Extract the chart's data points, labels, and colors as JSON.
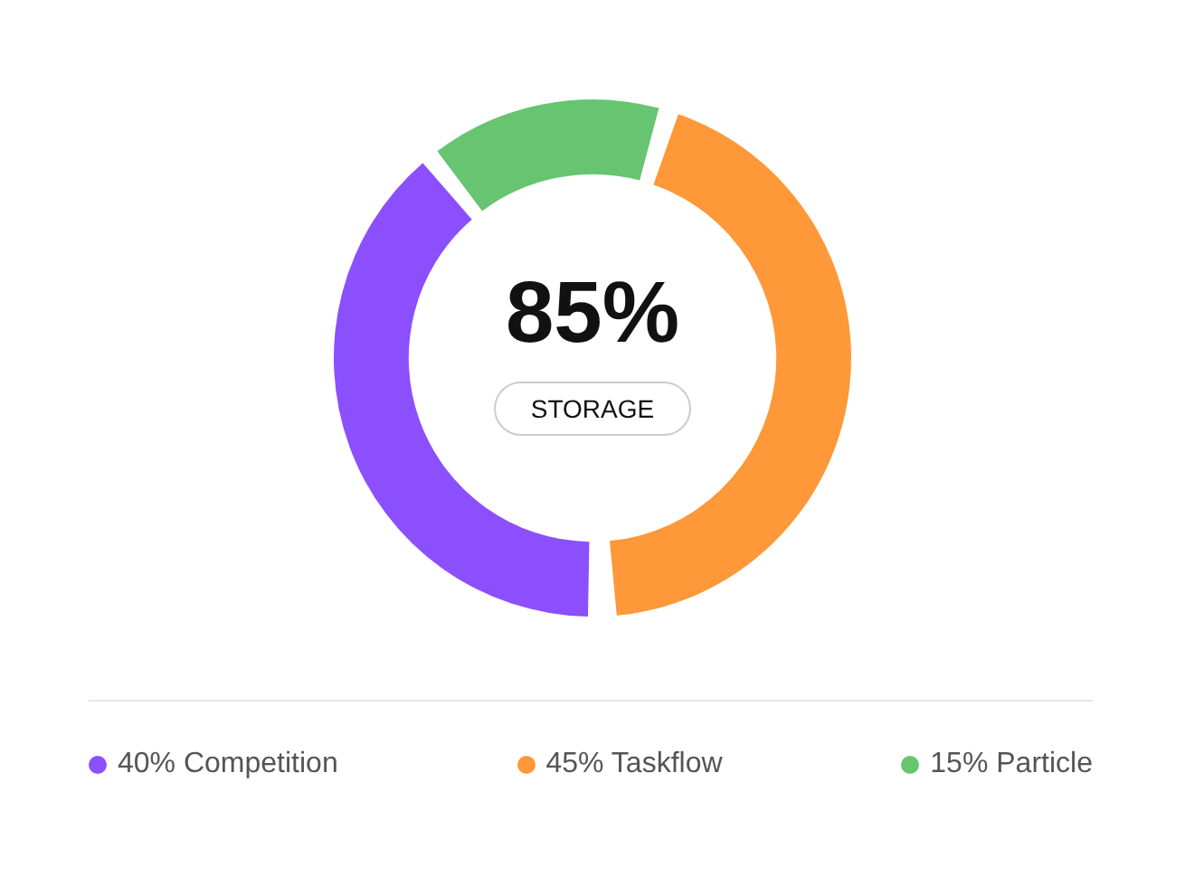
{
  "chart_data": {
    "type": "donut",
    "categories": [
      "40% Competition",
      "45% Taskflow",
      "15% Particle"
    ],
    "values": [
      40,
      45,
      15
    ],
    "colors": [
      "#8c4ffe",
      "#fe9838",
      "#67c571"
    ],
    "annotations": [
      "85%",
      "STORAGE"
    ],
    "legend": "bottom"
  }
}
